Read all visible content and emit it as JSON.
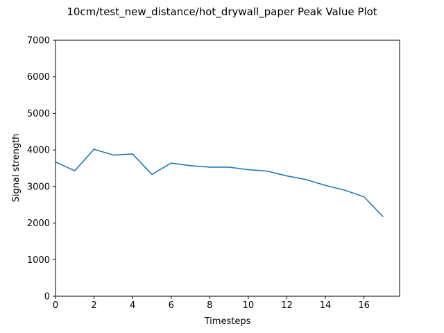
{
  "chart_data": {
    "type": "line",
    "title": "10cm/test_new_distance/hot_drywall_paper Peak Value Plot",
    "xlabel": "Timesteps",
    "ylabel": "Signal strength",
    "xlim": [
      0,
      17.85
    ],
    "ylim": [
      0,
      7000
    ],
    "xticks": [
      0,
      2,
      4,
      6,
      8,
      10,
      12,
      14,
      16
    ],
    "yticks": [
      0,
      1000,
      2000,
      3000,
      4000,
      5000,
      6000,
      7000
    ],
    "grid": false,
    "series": [
      {
        "color": "#1f77b4",
        "x": [
          0,
          1,
          2,
          3,
          4,
          5,
          6,
          7,
          8,
          9,
          10,
          11,
          12,
          13,
          14,
          15,
          16,
          17
        ],
        "y": [
          3670,
          3430,
          4020,
          3860,
          3890,
          3330,
          3640,
          3570,
          3530,
          3530,
          3460,
          3420,
          3290,
          3190,
          3030,
          2900,
          2720,
          2170
        ]
      }
    ]
  }
}
